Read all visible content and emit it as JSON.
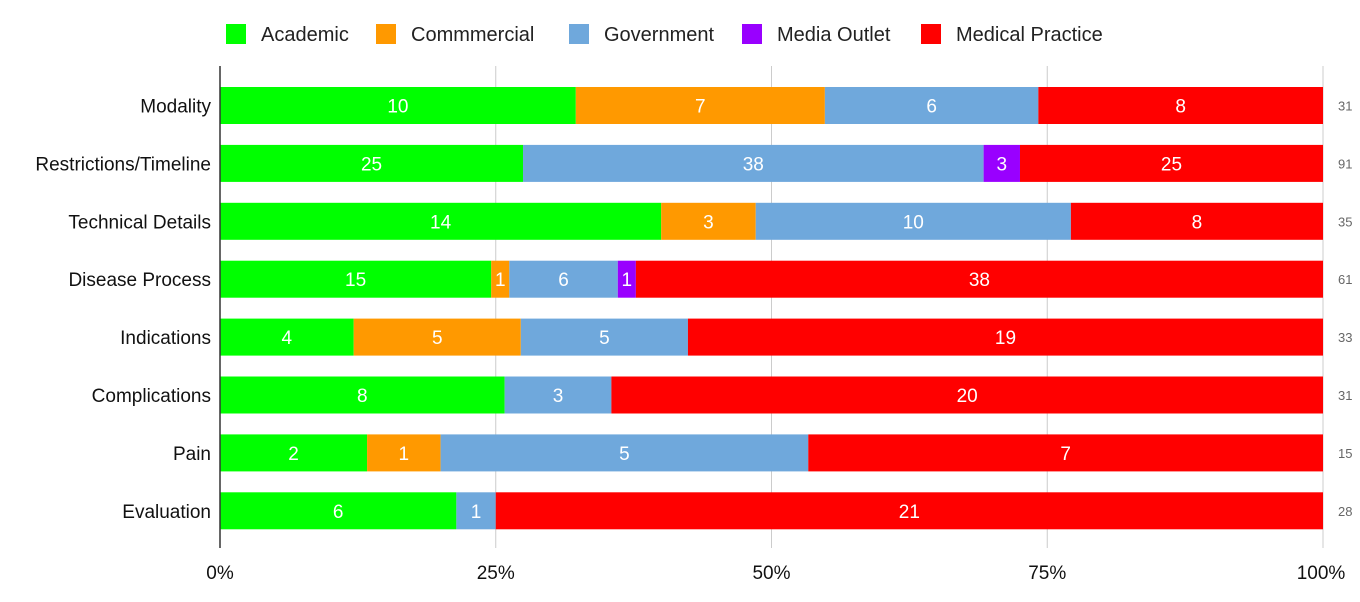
{
  "chart_data": {
    "type": "bar",
    "orientation": "horizontal",
    "stacked": "percent",
    "categories": [
      "Modality",
      "Restrictions/Timeline",
      "Technical Details",
      "Disease Process",
      "Indications",
      "Complications",
      "Pain",
      "Evaluation"
    ],
    "totals": [
      "31",
      "91",
      "35",
      "61",
      "33",
      "31",
      "15",
      "28"
    ],
    "series": [
      {
        "name": "Academic",
        "color": "#00ff00",
        "values": [
          10,
          25,
          14,
          15,
          4,
          8,
          2,
          6
        ]
      },
      {
        "name": "Commmercial",
        "color": "#ff9900",
        "values": [
          7,
          0,
          3,
          1,
          5,
          0,
          1,
          0
        ]
      },
      {
        "name": "Government",
        "color": "#6fa8dc",
        "values": [
          6,
          38,
          10,
          6,
          5,
          3,
          5,
          1
        ]
      },
      {
        "name": "Media Outlet",
        "color": "#9900ff",
        "values": [
          0,
          3,
          0,
          1,
          0,
          0,
          0,
          0
        ]
      },
      {
        "name": "Medical Practice",
        "color": "#ff0000",
        "values": [
          8,
          25,
          8,
          38,
          19,
          20,
          7,
          21
        ]
      }
    ],
    "x_ticks": [
      "0%",
      "25%",
      "50%",
      "75%",
      "100%"
    ],
    "xlim": [
      0,
      100
    ],
    "grid": true,
    "legend_position": "top"
  }
}
